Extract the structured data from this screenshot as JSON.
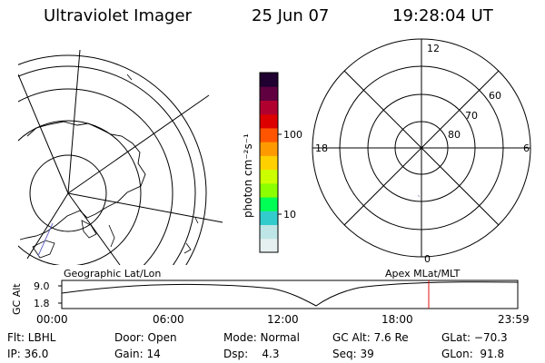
{
  "header": {
    "title": "Ultraviolet Imager",
    "date": "25 Jun 07",
    "time": "19:28:04 UT"
  },
  "colorbar": {
    "unit_label": "photon cm⁻²s⁻¹",
    "ticks": [
      "100",
      "10"
    ],
    "colors": [
      "#e6f0f0",
      "#bfe6e6",
      "#33cccc",
      "#00ff55",
      "#8cff00",
      "#ccff00",
      "#ffd000",
      "#ff9900",
      "#ff5500",
      "#dd0000",
      "#b00030",
      "#600040",
      "#200030"
    ]
  },
  "polar_plot": {
    "clock_labels": [
      "12",
      "6",
      "18",
      "0"
    ],
    "lat_labels": [
      "60",
      "70",
      "80"
    ]
  },
  "map_labels": {
    "left": "Geographic Lat/Lon",
    "right": "Apex  MLat/MLT"
  },
  "altitude_plot": {
    "ylabel": "GC Alt",
    "y_ticks": [
      "9.0",
      "1.8"
    ],
    "x_ticks": [
      "00:00",
      "06:00",
      "12:00",
      "18:00",
      "23:59"
    ],
    "marker_color": "#e01010"
  },
  "info": {
    "row1": [
      "Flt: LBHL",
      "Door: Open",
      "Mode: Normal",
      "GC Alt: 7.6 Re",
      "GLat: −70.3"
    ],
    "row2": [
      "IP: 36.0",
      "Gain: 14",
      "Dsp:    4.3",
      "Seq: 39",
      "GLon:  91.8"
    ]
  }
}
